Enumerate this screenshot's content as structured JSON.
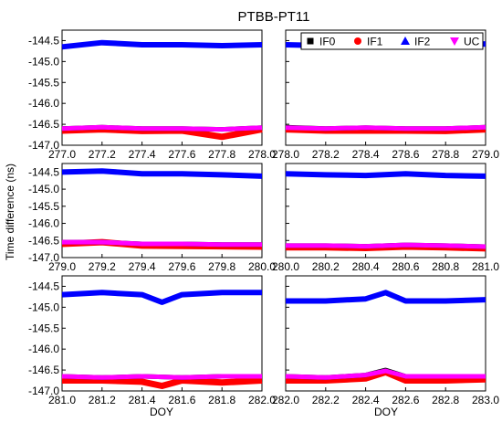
{
  "chart_data": {
    "type": "scatter",
    "title": "PTBB-PT11",
    "ylabel": "Time difference (ns)",
    "xlabel": "DOY",
    "ylim": [
      -147.0,
      -144.25
    ],
    "yticks": [
      "-144.5",
      "-145.0",
      "-145.5",
      "-146.0",
      "-146.5",
      "-147.0"
    ],
    "legend": {
      "placement": "top-right",
      "entries": [
        {
          "name": "IF0",
          "color": "#000000",
          "marker": "square"
        },
        {
          "name": "IF1",
          "color": "#ff0000",
          "marker": "circle"
        },
        {
          "name": "IF2",
          "color": "#0000ff",
          "marker": "triangle-up"
        },
        {
          "name": "UC",
          "color": "#ff00ff",
          "marker": "triangle-down"
        }
      ]
    },
    "panels": [
      {
        "xlim": [
          277.0,
          278.0
        ],
        "xticks": [
          "277.0",
          "277.2",
          "277.4",
          "277.6",
          "277.8",
          "278.0"
        ],
        "series": [
          {
            "name": "IF2",
            "x": [
              277.0,
              277.2,
              277.4,
              277.6,
              277.8,
              278.0
            ],
            "y": [
              -144.65,
              -144.55,
              -144.6,
              -144.6,
              -144.62,
              -144.6
            ]
          },
          {
            "name": "IF0",
            "x": [
              277.0,
              277.2,
              277.4,
              277.6,
              277.8,
              278.0
            ],
            "y": [
              -146.6,
              -146.57,
              -146.6,
              -146.6,
              -146.62,
              -146.58
            ]
          },
          {
            "name": "IF1",
            "x": [
              277.0,
              277.2,
              277.4,
              277.6,
              277.8,
              278.0
            ],
            "y": [
              -146.65,
              -146.62,
              -146.66,
              -146.65,
              -146.8,
              -146.62
            ]
          },
          {
            "name": "UC",
            "x": [
              277.0,
              277.2,
              277.4,
              277.6,
              277.8,
              278.0
            ],
            "y": [
              -146.6,
              -146.57,
              -146.6,
              -146.6,
              -146.62,
              -146.58
            ]
          }
        ]
      },
      {
        "xlim": [
          278.0,
          279.0
        ],
        "xticks": [
          "278.0",
          "278.2",
          "278.4",
          "278.6",
          "278.8",
          "279.0"
        ],
        "series": [
          {
            "name": "IF2",
            "x": [
              278.0,
              278.2,
              278.4,
              278.6,
              278.8,
              279.0
            ],
            "y": [
              -144.6,
              -144.62,
              -144.65,
              -144.6,
              -144.6,
              -144.58
            ]
          },
          {
            "name": "IF0",
            "x": [
              278.0,
              278.2,
              278.4,
              278.6,
              278.8,
              279.0
            ],
            "y": [
              -146.57,
              -146.6,
              -146.58,
              -146.6,
              -146.6,
              -146.57
            ]
          },
          {
            "name": "IF1",
            "x": [
              278.0,
              278.2,
              278.4,
              278.6,
              278.8,
              279.0
            ],
            "y": [
              -146.62,
              -146.65,
              -146.65,
              -146.65,
              -146.66,
              -146.62
            ]
          },
          {
            "name": "UC",
            "x": [
              278.0,
              278.2,
              278.4,
              278.6,
              278.8,
              279.0
            ],
            "y": [
              -146.58,
              -146.6,
              -146.58,
              -146.6,
              -146.6,
              -146.57
            ]
          }
        ]
      },
      {
        "xlim": [
          279.0,
          280.0
        ],
        "xticks": [
          "279.0",
          "279.2",
          "279.4",
          "279.6",
          "279.8",
          "280.0"
        ],
        "series": [
          {
            "name": "IF2",
            "x": [
              279.0,
              279.2,
              279.4,
              279.6,
              279.8,
              280.0
            ],
            "y": [
              -144.5,
              -144.47,
              -144.55,
              -144.55,
              -144.58,
              -144.62
            ]
          },
          {
            "name": "IF0",
            "x": [
              279.0,
              279.2,
              279.4,
              279.6,
              279.8,
              280.0
            ],
            "y": [
              -146.55,
              -146.55,
              -146.6,
              -146.6,
              -146.62,
              -146.62
            ]
          },
          {
            "name": "IF1",
            "x": [
              279.0,
              279.2,
              279.4,
              279.6,
              279.8,
              280.0
            ],
            "y": [
              -146.6,
              -146.55,
              -146.65,
              -146.66,
              -146.67,
              -146.68
            ]
          },
          {
            "name": "UC",
            "x": [
              279.0,
              279.2,
              279.4,
              279.6,
              279.8,
              280.0
            ],
            "y": [
              -146.55,
              -146.55,
              -146.6,
              -146.6,
              -146.62,
              -146.62
            ]
          }
        ]
      },
      {
        "xlim": [
          280.0,
          281.0
        ],
        "xticks": [
          "280.0",
          "280.2",
          "280.4",
          "280.6",
          "280.8",
          "281.0"
        ],
        "series": [
          {
            "name": "IF2",
            "x": [
              280.0,
              280.2,
              280.4,
              280.6,
              280.8,
              281.0
            ],
            "y": [
              -144.55,
              -144.58,
              -144.6,
              -144.55,
              -144.6,
              -144.62
            ]
          },
          {
            "name": "IF0",
            "x": [
              280.0,
              280.2,
              280.4,
              280.6,
              280.8,
              281.0
            ],
            "y": [
              -146.65,
              -146.65,
              -146.67,
              -146.63,
              -146.65,
              -146.68
            ]
          },
          {
            "name": "IF1",
            "x": [
              280.0,
              280.2,
              280.4,
              280.6,
              280.8,
              281.0
            ],
            "y": [
              -146.7,
              -146.7,
              -146.72,
              -146.68,
              -146.7,
              -146.73
            ]
          },
          {
            "name": "UC",
            "x": [
              280.0,
              280.2,
              280.4,
              280.6,
              280.8,
              281.0
            ],
            "y": [
              -146.65,
              -146.65,
              -146.67,
              -146.63,
              -146.65,
              -146.68
            ]
          }
        ]
      },
      {
        "xlim": [
          281.0,
          282.0
        ],
        "xticks": [
          "281.0",
          "281.2",
          "281.4",
          "281.6",
          "281.8",
          "282.0"
        ],
        "series": [
          {
            "name": "IF2",
            "x": [
              281.0,
              281.2,
              281.4,
              281.5,
              281.6,
              281.8,
              282.0
            ],
            "y": [
              -144.7,
              -144.65,
              -144.7,
              -144.88,
              -144.7,
              -144.65,
              -144.65
            ]
          },
          {
            "name": "IF0",
            "x": [
              281.0,
              281.2,
              281.4,
              281.6,
              281.8,
              282.0
            ],
            "y": [
              -146.65,
              -146.68,
              -146.65,
              -146.68,
              -146.65,
              -146.65
            ]
          },
          {
            "name": "IF1",
            "x": [
              281.0,
              281.2,
              281.4,
              281.5,
              281.6,
              281.8,
              282.0
            ],
            "y": [
              -146.75,
              -146.75,
              -146.78,
              -146.88,
              -146.75,
              -146.8,
              -146.75
            ]
          },
          {
            "name": "UC",
            "x": [
              281.0,
              281.2,
              281.4,
              281.6,
              281.8,
              282.0
            ],
            "y": [
              -146.65,
              -146.68,
              -146.65,
              -146.68,
              -146.65,
              -146.65
            ]
          }
        ]
      },
      {
        "xlim": [
          282.0,
          283.0
        ],
        "xticks": [
          "282.0",
          "282.2",
          "282.4",
          "282.6",
          "282.8",
          "283.0"
        ],
        "series": [
          {
            "name": "IF2",
            "x": [
              282.0,
              282.2,
              282.4,
              282.5,
              282.6,
              282.8,
              283.0
            ],
            "y": [
              -144.85,
              -144.85,
              -144.8,
              -144.65,
              -144.85,
              -144.85,
              -144.82
            ]
          },
          {
            "name": "IF0",
            "x": [
              282.0,
              282.2,
              282.4,
              282.5,
              282.6,
              282.8,
              283.0
            ],
            "y": [
              -146.65,
              -146.68,
              -146.62,
              -146.5,
              -146.65,
              -146.65,
              -146.65
            ]
          },
          {
            "name": "IF1",
            "x": [
              282.0,
              282.2,
              282.4,
              282.5,
              282.6,
              282.8,
              283.0
            ],
            "y": [
              -146.75,
              -146.75,
              -146.7,
              -146.55,
              -146.75,
              -146.75,
              -146.72
            ]
          },
          {
            "name": "UC",
            "x": [
              282.0,
              282.2,
              282.4,
              282.5,
              282.6,
              282.8,
              283.0
            ],
            "y": [
              -146.65,
              -146.68,
              -146.62,
              -146.52,
              -146.65,
              -146.65,
              -146.65
            ]
          }
        ]
      }
    ]
  }
}
